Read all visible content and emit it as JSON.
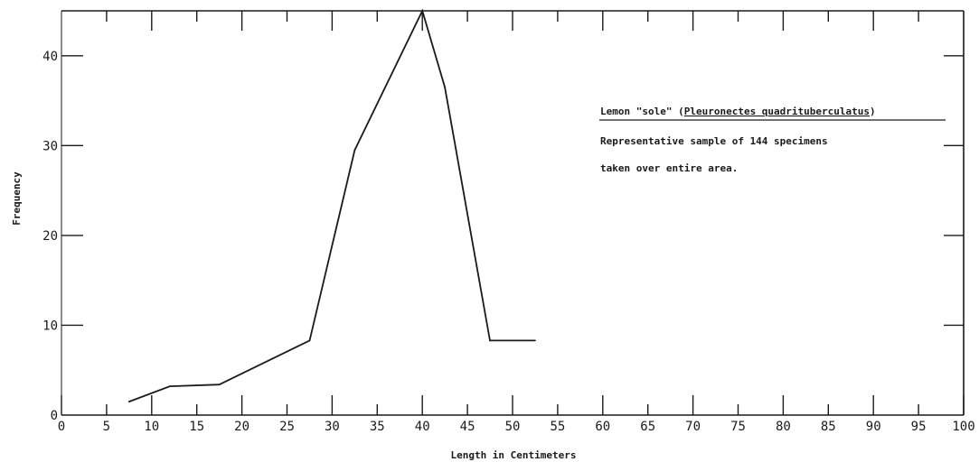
{
  "chart_data": {
    "type": "line",
    "title": "",
    "xlabel": "Length in Centimeters",
    "ylabel": "Frequency",
    "xlim": [
      0,
      100
    ],
    "ylim": [
      0,
      45
    ],
    "x_ticks": [
      0,
      5,
      10,
      15,
      20,
      25,
      30,
      35,
      40,
      45,
      50,
      55,
      60,
      65,
      70,
      75,
      80,
      85,
      90,
      95,
      100
    ],
    "x_tick_labels": [
      "0",
      "5",
      "10",
      "15",
      "20",
      "25",
      "30",
      "35",
      "40",
      "45",
      "50",
      "55",
      "60",
      "65",
      "70",
      "75",
      "80",
      "85",
      "90",
      "95",
      "100"
    ],
    "y_ticks": [
      0,
      10,
      20,
      30,
      40
    ],
    "y_tick_labels": [
      "0",
      "10",
      "20",
      "30",
      "40"
    ],
    "grid": false,
    "series": [
      {
        "x": [
          7.5,
          12,
          17.5,
          27.5,
          32.5,
          40,
          42.5,
          47.5,
          52.5
        ],
        "y": [
          1.5,
          3.2,
          3.4,
          8.3,
          29.5,
          45,
          36.5,
          8.3,
          8.3
        ]
      }
    ],
    "annotation": {
      "line1_prefix": "Lemon \"sole\" (",
      "line1_species": "Pleuronectes quadrituberculatus",
      "line1_suffix": ")",
      "line2": "Representative sample of 144 specimens",
      "line3": "taken over entire area."
    }
  }
}
